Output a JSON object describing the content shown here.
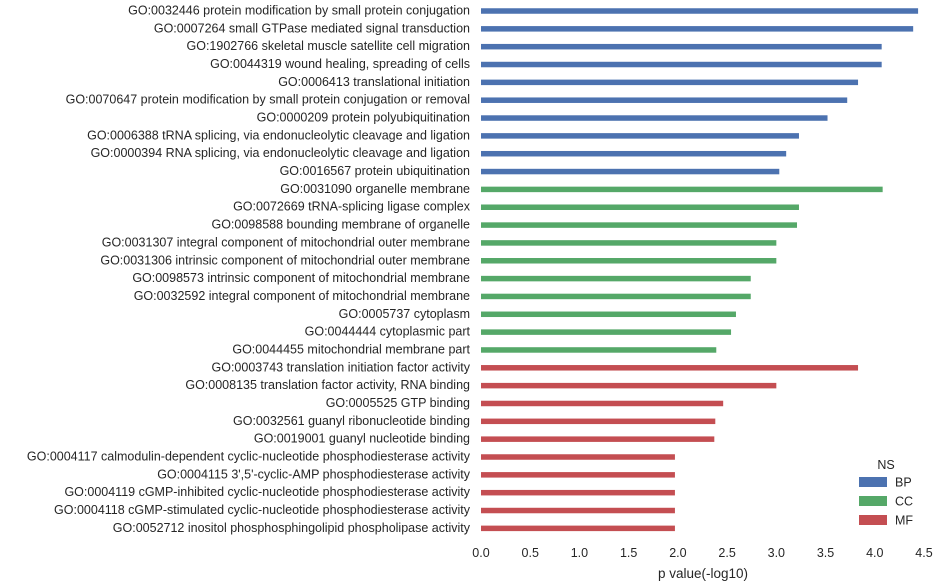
{
  "chart_data": {
    "type": "bar",
    "orientation": "horizontal",
    "xlabel": "p value(-log10)",
    "xlim": [
      0,
      4.5
    ],
    "xticks": [
      "0.0",
      "0.5",
      "1.0",
      "1.5",
      "2.0",
      "2.5",
      "3.0",
      "3.5",
      "4.0",
      "4.5"
    ],
    "grid": false,
    "legend": {
      "title": "NS",
      "placement": "bottom-right",
      "entries": [
        {
          "name": "BP",
          "color": "#4c72b0"
        },
        {
          "name": "CC",
          "color": "#55a868"
        },
        {
          "name": "MF",
          "color": "#c44e52"
        }
      ]
    },
    "categories": [
      {
        "label": "GO:0032446 protein modification by small protein conjugation",
        "value": 4.44,
        "ns": "BP"
      },
      {
        "label": "GO:0007264 small GTPase mediated signal transduction",
        "value": 4.39,
        "ns": "BP"
      },
      {
        "label": "GO:1902766 skeletal muscle satellite cell migration",
        "value": 4.07,
        "ns": "BP"
      },
      {
        "label": "GO:0044319 wound healing, spreading of cells",
        "value": 4.07,
        "ns": "BP"
      },
      {
        "label": "GO:0006413 translational initiation",
        "value": 3.83,
        "ns": "BP"
      },
      {
        "label": "GO:0070647 protein modification by small protein conjugation or removal",
        "value": 3.72,
        "ns": "BP"
      },
      {
        "label": "GO:0000209 protein polyubiquitination",
        "value": 3.52,
        "ns": "BP"
      },
      {
        "label": "GO:0006388 tRNA splicing, via endonucleolytic cleavage and ligation",
        "value": 3.23,
        "ns": "BP"
      },
      {
        "label": "GO:0000394 RNA splicing, via endonucleolytic cleavage and ligation",
        "value": 3.1,
        "ns": "BP"
      },
      {
        "label": "GO:0016567 protein ubiquitination",
        "value": 3.03,
        "ns": "BP"
      },
      {
        "label": "GO:0031090 organelle membrane",
        "value": 4.08,
        "ns": "CC"
      },
      {
        "label": "GO:0072669 tRNA-splicing ligase complex",
        "value": 3.23,
        "ns": "CC"
      },
      {
        "label": "GO:0098588 bounding membrane of organelle",
        "value": 3.21,
        "ns": "CC"
      },
      {
        "label": "GO:0031307 integral component of mitochondrial outer membrane",
        "value": 3.0,
        "ns": "CC"
      },
      {
        "label": "GO:0031306 intrinsic component of mitochondrial outer membrane",
        "value": 3.0,
        "ns": "CC"
      },
      {
        "label": "GO:0098573 intrinsic component of mitochondrial membrane",
        "value": 2.74,
        "ns": "CC"
      },
      {
        "label": "GO:0032592 integral component of mitochondrial membrane",
        "value": 2.74,
        "ns": "CC"
      },
      {
        "label": "GO:0005737 cytoplasm",
        "value": 2.59,
        "ns": "CC"
      },
      {
        "label": "GO:0044444 cytoplasmic part",
        "value": 2.54,
        "ns": "CC"
      },
      {
        "label": "GO:0044455 mitochondrial membrane part",
        "value": 2.39,
        "ns": "CC"
      },
      {
        "label": "GO:0003743 translation initiation factor activity",
        "value": 3.83,
        "ns": "MF"
      },
      {
        "label": "GO:0008135 translation factor activity, RNA binding",
        "value": 3.0,
        "ns": "MF"
      },
      {
        "label": "GO:0005525 GTP binding",
        "value": 2.46,
        "ns": "MF"
      },
      {
        "label": "GO:0032561 guanyl ribonucleotide binding",
        "value": 2.38,
        "ns": "MF"
      },
      {
        "label": "GO:0019001 guanyl nucleotide binding",
        "value": 2.37,
        "ns": "MF"
      },
      {
        "label": "GO:0004117 calmodulin-dependent cyclic-nucleotide phosphodiesterase activity",
        "value": 1.97,
        "ns": "MF"
      },
      {
        "label": "GO:0004115 3',5'-cyclic-AMP phosphodiesterase activity",
        "value": 1.97,
        "ns": "MF"
      },
      {
        "label": "GO:0004119 cGMP-inhibited cyclic-nucleotide phosphodiesterase activity",
        "value": 1.97,
        "ns": "MF"
      },
      {
        "label": "GO:0004118 cGMP-stimulated cyclic-nucleotide phosphodiesterase activity",
        "value": 1.97,
        "ns": "MF"
      },
      {
        "label": "GO:0052712 inositol phosphosphingolipid phospholipase activity",
        "value": 1.97,
        "ns": "MF"
      }
    ]
  }
}
